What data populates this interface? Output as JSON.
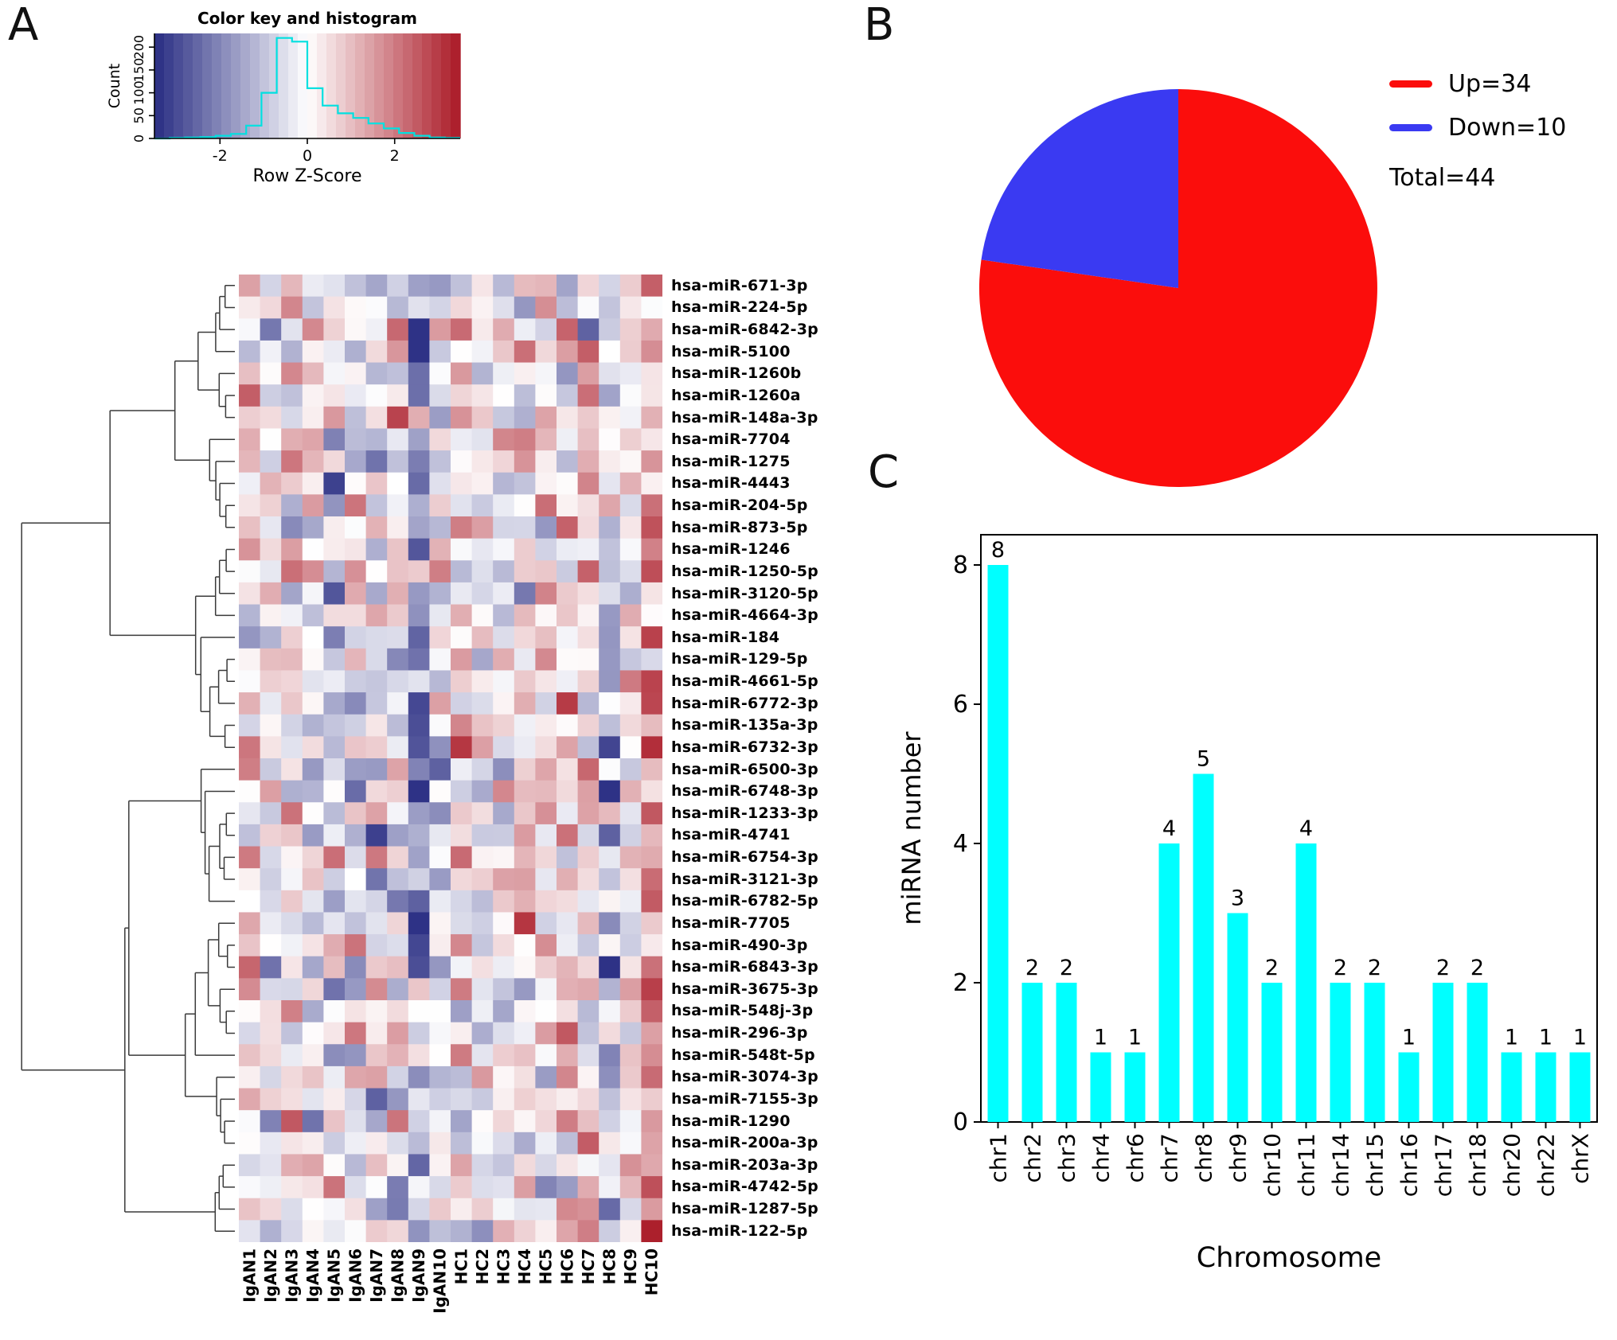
{
  "figure": {
    "panels": [
      "A",
      "B",
      "C"
    ]
  },
  "chart_data": [
    {
      "id": "color_key",
      "type": "histogram",
      "title": "Color key and histogram",
      "xlabel": "Row Z-Score",
      "ylabel": "Count",
      "x_ticks": [
        -2,
        0,
        2
      ],
      "y_ticks": [
        0,
        50,
        100,
        150,
        200
      ],
      "xlim": [
        -3.5,
        3.5
      ],
      "ylim": [
        0,
        230
      ],
      "bin_edges": [
        -3.5,
        -3.15,
        -2.8,
        -2.45,
        -2.1,
        -1.75,
        -1.4,
        -1.05,
        -0.7,
        -0.35,
        0,
        0.35,
        0.7,
        1.05,
        1.4,
        1.75,
        2.1,
        2.45,
        2.8,
        3.15,
        3.5
      ],
      "counts": [
        0,
        1,
        2,
        3,
        6,
        10,
        28,
        100,
        220,
        212,
        110,
        72,
        55,
        45,
        33,
        22,
        12,
        6,
        2,
        1
      ],
      "line_color": "#00e0e0",
      "note": "histogram counts estimated from plot"
    },
    {
      "id": "heatmap",
      "type": "heatmap",
      "rows": [
        "hsa-miR-671-3p",
        "hsa-miR-224-5p",
        "hsa-miR-6842-3p",
        "hsa-miR-5100",
        "hsa-miR-1260b",
        "hsa-miR-1260a",
        "hsa-miR-148a-3p",
        "hsa-miR-7704",
        "hsa-miR-1275",
        "hsa-miR-4443",
        "hsa-miR-204-5p",
        "hsa-miR-873-5p",
        "hsa-miR-1246",
        "hsa-miR-1250-5p",
        "hsa-miR-3120-5p",
        "hsa-miR-4664-3p",
        "hsa-miR-184",
        "hsa-miR-129-5p",
        "hsa-miR-4661-5p",
        "hsa-miR-6772-3p",
        "hsa-miR-135a-3p",
        "hsa-miR-6732-3p",
        "hsa-miR-6500-3p",
        "hsa-miR-6748-3p",
        "hsa-miR-1233-3p",
        "hsa-miR-4741",
        "hsa-miR-6754-3p",
        "hsa-miR-3121-3p",
        "hsa-miR-6782-5p",
        "hsa-miR-7705",
        "hsa-miR-490-3p",
        "hsa-miR-6843-3p",
        "hsa-miR-3675-3p",
        "hsa-miR-548j-3p",
        "hsa-miR-296-3p",
        "hsa-miR-548t-5p",
        "hsa-miR-3074-3p",
        "hsa-miR-7155-3p",
        "hsa-miR-1290",
        "hsa-miR-200a-3p",
        "hsa-miR-203a-3p",
        "hsa-miR-4742-5p",
        "hsa-miR-1287-5p",
        "hsa-miR-122-5p"
      ],
      "columns": [
        "IgAN1",
        "IgAN2",
        "IgAN3",
        "IgAN4",
        "IgAN5",
        "IgAN6",
        "IgAN7",
        "IgAN8",
        "IgAN9",
        "IgAN10",
        "HC1",
        "HC2",
        "HC3",
        "HC4",
        "HC5",
        "HC6",
        "HC7",
        "HC8",
        "HC9",
        "HC10"
      ],
      "value_range": [
        -3.5,
        3.5
      ],
      "neg_color": [
        40,
        44,
        130
      ],
      "pos_color": [
        170,
        25,
        38
      ],
      "note": "individual cell z-scores are not legible at source resolution; pattern regenerated pseudo-randomly from seed below",
      "render_hint": {
        "seed": 42,
        "col_bias": [
          0.35,
          0.05,
          0.2,
          0.15,
          -0.05,
          -0.1,
          -0.15,
          0.05,
          -1.7,
          -0.25,
          0.1,
          -0.2,
          0.15,
          0.3,
          0.25,
          0.45,
          0.05,
          -0.9,
          -0.1,
          1.5
        ]
      }
    },
    {
      "id": "pie",
      "type": "pie",
      "slices": [
        {
          "label": "Up=34",
          "value": 34,
          "color": "#fb0d0c"
        },
        {
          "label": "Down=10",
          "value": 10,
          "color": "#3a3af2"
        }
      ],
      "total_label": "Total=44",
      "legend_position": "right"
    },
    {
      "id": "bar",
      "type": "bar",
      "categories": [
        "chr1",
        "chr2",
        "chr3",
        "chr4",
        "chr6",
        "chr7",
        "chr8",
        "chr9",
        "chr10",
        "chr11",
        "chr14",
        "chr15",
        "chr16",
        "chr17",
        "chr18",
        "chr20",
        "chr22",
        "chrX"
      ],
      "values": [
        8,
        2,
        2,
        1,
        1,
        4,
        5,
        3,
        2,
        4,
        2,
        2,
        1,
        2,
        2,
        1,
        1,
        1
      ],
      "xlabel": "Chromosome",
      "ylabel": "miRNA number",
      "ylim": [
        0,
        8
      ],
      "y_ticks": [
        0,
        2,
        4,
        6,
        8
      ],
      "bar_color": "#00ffff"
    }
  ]
}
